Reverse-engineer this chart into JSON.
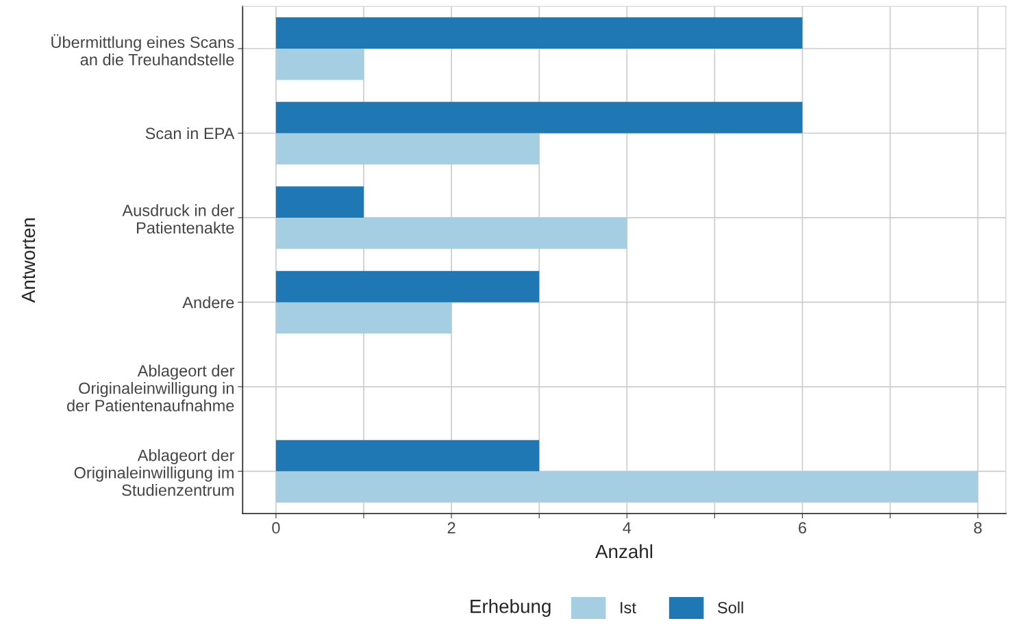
{
  "chart_data": {
    "type": "bar",
    "orientation": "horizontal",
    "xlabel": "Anzahl",
    "ylabel": "Antworten",
    "legend_title": "Erhebung",
    "categories": [
      "Übermittlung eines Scans\nan die Treuhandstelle",
      "Scan in EPA",
      "Ausdruck in der\nPatientenakte",
      "Andere",
      "Ablageort der\nOriginaleinwilligung in\nder Patientenaufnahme",
      "Ablageort der\nOriginaleinwilligung im\nStudienzentrum"
    ],
    "series": [
      {
        "name": "Ist",
        "color": "#a6cee3",
        "values": [
          1,
          3,
          4,
          2,
          null,
          8
        ]
      },
      {
        "name": "Soll",
        "color": "#1f78b4",
        "values": [
          6,
          6,
          1,
          3,
          null,
          3
        ]
      }
    ],
    "xlim": [
      -0.38,
      8.32
    ],
    "xticks": [
      0,
      {
        "value": 1,
        "label": null
      },
      2,
      {
        "value": 3,
        "label": null
      },
      4,
      {
        "value": 5,
        "label": null
      },
      6,
      {
        "value": 7,
        "label": null
      },
      8
    ],
    "grid": true,
    "legend": "bottom"
  }
}
